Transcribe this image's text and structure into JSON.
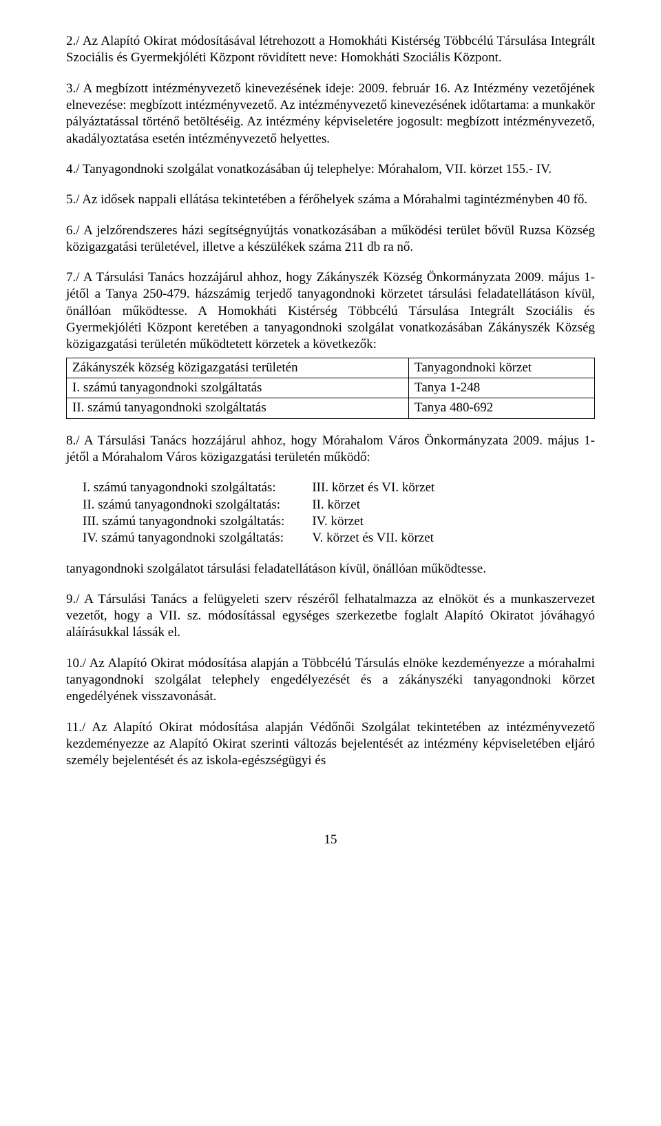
{
  "p2": "2./ Az Alapító Okirat módosításával létrehozott a Homokháti Kistérség Többcélú Társulása Integrált Szociális és Gyermekjóléti Központ rövidített neve: Homokháti Szociális Központ.",
  "p3": "3./ A megbízott intézményvezető kinevezésének ideje: 2009. február 16. Az Intézmény vezetőjének elnevezése: megbízott intézményvezető. Az intézményvezető kinevezésének időtartama: a munkakör pályáztatással történő betöltéséig. Az intézmény képviseletére jogosult: megbízott intézményvezető, akadályoztatása esetén intézményvezető helyettes.",
  "p4": "4./ Tanyagondnoki szolgálat vonatkozásában új telephelye: Mórahalom, VII. körzet 155.- IV.",
  "p5": "5./ Az idősek nappali ellátása tekintetében a férőhelyek száma a Mórahalmi tagintézményben 40 fő.",
  "p6": "6./ A jelzőrendszeres házi segítségnyújtás vonatkozásában a működési terület bővül Ruzsa Község közigazgatási területével, illetve a készülékek száma 211 db ra nő.",
  "p7": "7./ A Társulási Tanács hozzájárul ahhoz, hogy Zákányszék Község Önkormányzata 2009. május 1-jétől a Tanya 250-479. házszámig terjedő tanyagondnoki körzetet társulási feladatellátáson kívül, önállóan működtesse. A Homokháti Kistérség Többcélú Társulása Integrált Szociális és Gyermekjóléti Központ keretében a tanyagondnoki szolgálat vonatkozásában Zákányszék Község közigazgatási területén működtetett körzetek a következők:",
  "table7": {
    "rows": [
      [
        "Zákányszék község közigazgatási területén",
        "Tanyagondnoki körzet"
      ],
      [
        "I. számú tanyagondnoki szolgáltatás",
        "Tanya 1-248"
      ],
      [
        "II. számú tanyagondnoki szolgáltatás",
        "Tanya 480-692"
      ]
    ]
  },
  "p8": "8./ A Társulási Tanács hozzájárul ahhoz, hogy Mórahalom Város Önkormányzata 2009. május 1-jétől a Mórahalom Város közigazgatási területén működő:",
  "list8": {
    "left": [
      "I. számú tanyagondnoki szolgáltatás:",
      "II. számú tanyagondnoki szolgáltatás:",
      "III. számú tanyagondnoki szolgáltatás:",
      "IV. számú tanyagondnoki szolgáltatás:"
    ],
    "right": [
      "III. körzet és VI. körzet",
      "II. körzet",
      "IV. körzet",
      "V. körzet és VII. körzet"
    ]
  },
  "p8b": "tanyagondnoki szolgálatot társulási feladatellátáson kívül, önállóan működtesse.",
  "p9": "9./ A Társulási Tanács a felügyeleti szerv részéről felhatalmazza az elnököt és a munkaszervezet vezetőt, hogy a VII. sz. módosítással egységes szerkezetbe foglalt Alapító Okiratot jóváhagyó aláírásukkal lássák el.",
  "p10": "10./ Az Alapító Okirat módosítása alapján a Többcélú Társulás elnöke kezdeményezze a mórahalmi tanyagondnoki szolgálat telephely engedélyezését és a zákányszéki tanyagondnoki körzet engedélyének visszavonását.",
  "p11": "11./ Az Alapító Okirat módosítása alapján Védőnői Szolgálat tekintetében az intézményvezető kezdeményezze az Alapító Okirat szerinti változás bejelentését az intézmény képviseletében eljáró személy bejelentését és az iskola-egészségügyi és",
  "pagenum": "15"
}
